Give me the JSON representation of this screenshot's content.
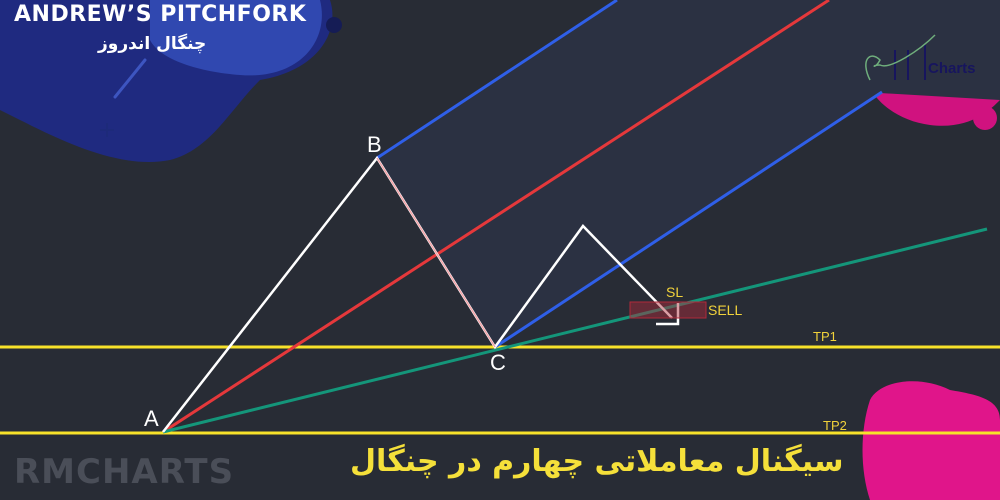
{
  "header": {
    "title": "ANDREW’S PITCHFORK",
    "subtitle": "چنگال اندروز"
  },
  "points": {
    "a": "A",
    "b": "B",
    "c": "C"
  },
  "labels": {
    "sl": "SL",
    "sell": "SELL",
    "tp1": "TP1",
    "tp2": "TP2"
  },
  "footer": {
    "brand": "RMCHARTS",
    "caption": "سیگنال معاملاتی چهارم در چنگال"
  },
  "logo": {
    "text": "Charts"
  },
  "colors": {
    "background": "#282c35",
    "median": "#e5383b",
    "parallels": "#2f5fe8",
    "trendline": "#14967a",
    "targets": "#f7e22a",
    "stop_box": "#b02a3a",
    "price_path": "#ffffff"
  }
}
